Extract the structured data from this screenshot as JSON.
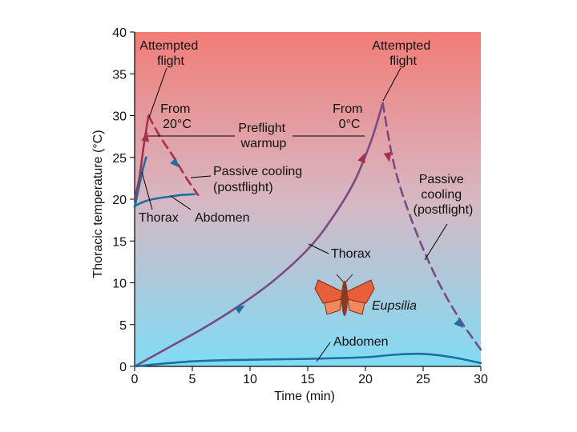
{
  "chart_data": {
    "type": "line",
    "xlabel": "Time (min)",
    "ylabel": "Thoracic temperature (°C)",
    "xlim": [
      0,
      30
    ],
    "ylim": [
      0,
      40
    ],
    "xticks": [
      "0",
      "5",
      "10",
      "15",
      "20",
      "25",
      "30"
    ],
    "yticks": [
      "0",
      "5",
      "10",
      "15",
      "20",
      "25",
      "30",
      "35",
      "40"
    ],
    "series": [
      {
        "name": "Thorax (from 20°C) warmup",
        "style": "solid",
        "color": "#a8304a",
        "x": [
          0,
          0.4,
          0.8,
          1.2
        ],
        "y": [
          20,
          22.5,
          26.5,
          30
        ]
      },
      {
        "name": "Thorax (from 20°C) passive cooling",
        "style": "dashed",
        "color": "#a8304a",
        "x": [
          1.2,
          2.2,
          3.4,
          4.5,
          5.5
        ],
        "y": [
          30,
          27.5,
          25,
          22.5,
          20.5
        ]
      },
      {
        "name": "Thorax low (from 20°C)",
        "style": "solid",
        "color": "#1f6e9e",
        "x": [
          0,
          0.3,
          0.7,
          1.0
        ],
        "y": [
          19,
          21,
          23.5,
          25
        ]
      },
      {
        "name": "Abdomen (from 20°C)",
        "style": "solid",
        "color": "#1f6e9e",
        "x": [
          0,
          1,
          2,
          3,
          4,
          5.2
        ],
        "y": [
          19.2,
          19.8,
          20.1,
          20.3,
          20.5,
          20.6
        ]
      },
      {
        "name": "Thorax (from 0°C) warmup",
        "style": "solid",
        "color": "#7b4a83",
        "x": [
          0,
          3,
          6,
          9,
          12,
          15,
          17,
          19,
          20.5,
          21.5
        ],
        "y": [
          0,
          2.3,
          4.6,
          7.2,
          10.2,
          14,
          17.5,
          22,
          27,
          31.5
        ]
      },
      {
        "name": "Thorax (from 0°C) passive cooling",
        "style": "dashed",
        "color": "#7b4a83",
        "x": [
          21.5,
          22.5,
          24,
          26,
          28,
          30
        ],
        "y": [
          31.5,
          24,
          17.5,
          11,
          6,
          2
        ]
      },
      {
        "name": "Abdomen (from 0°C)",
        "style": "solid",
        "color": "#1f6e9e",
        "x": [
          0,
          5,
          10,
          15,
          20,
          22.5,
          25,
          27.5,
          30
        ],
        "y": [
          0,
          0.6,
          0.8,
          0.9,
          1.1,
          1.4,
          1.5,
          1.1,
          0.4
        ]
      }
    ],
    "annotations": {
      "attempted_flight_left": [
        "Attempted",
        "flight"
      ],
      "attempted_flight_right": [
        "Attempted",
        "flight"
      ],
      "from_20": [
        "From",
        "20°C"
      ],
      "from_0": [
        "From",
        "0°C"
      ],
      "preflight": [
        "Preflight",
        "warmup"
      ],
      "passive_left": [
        "Passive cooling",
        "(postflight)"
      ],
      "passive_right": [
        "Passive",
        "cooling",
        "(postflight)"
      ],
      "thorax_left": "Thorax",
      "abdomen_left": "Abdomen",
      "thorax_mid": "Thorax",
      "abdomen_bottom": "Abdomen",
      "species": "Eupsilia"
    }
  },
  "colors": {
    "bg_top": "#f27c77",
    "bg_bottom": "#7fdcf5",
    "thorax_red": "#a8304a",
    "blue": "#1f6e9e"
  }
}
